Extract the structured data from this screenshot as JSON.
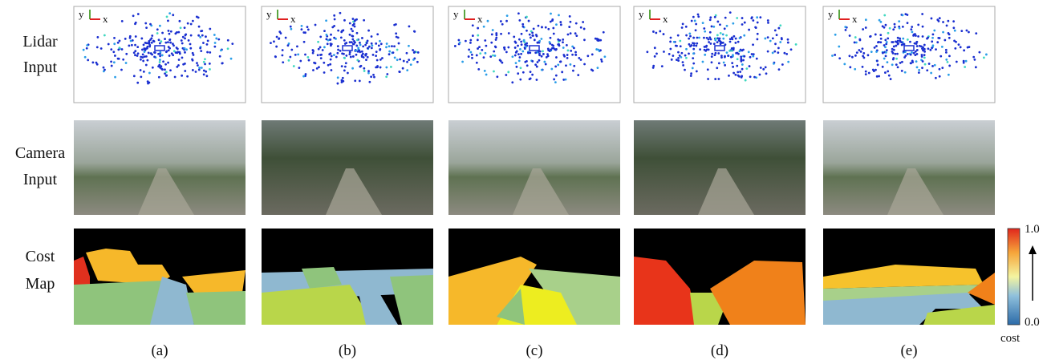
{
  "row_labels": [
    [
      "Lidar",
      "Input"
    ],
    [
      "Camera",
      "Input"
    ],
    [
      "Cost",
      "Map"
    ]
  ],
  "column_labels": [
    "(a)",
    "(b)",
    "(c)",
    "(d)",
    "(e)"
  ],
  "axis_labels": {
    "x": "x",
    "y": "y"
  },
  "colorbar": {
    "max_label": "1.0",
    "min_label": "0.0",
    "label": "cost"
  }
}
